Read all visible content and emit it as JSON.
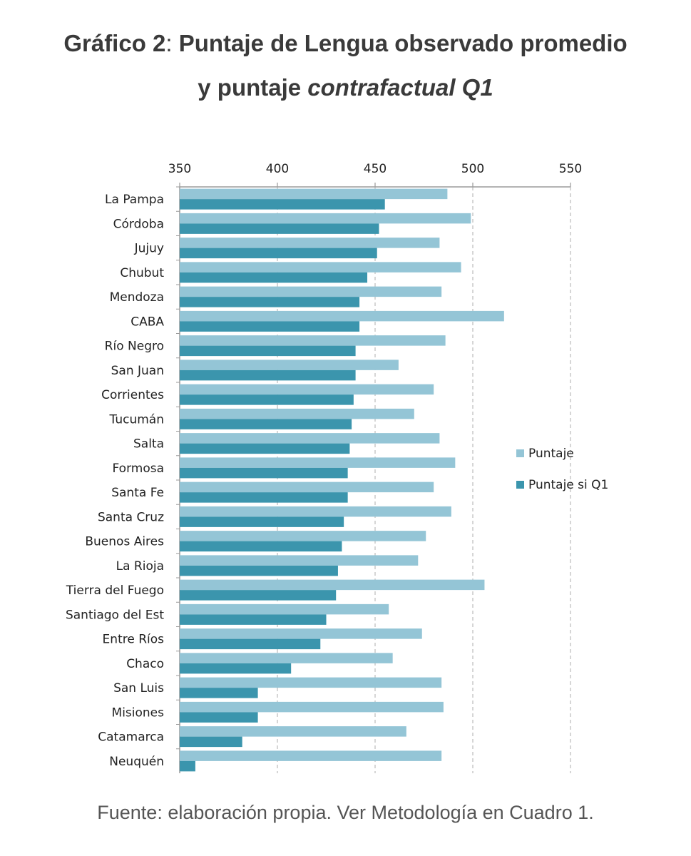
{
  "title": {
    "prefix": "Gráfico 2",
    "sep": ": ",
    "line1_rest": "Puntaje de Lengua observado promedio",
    "line2_plain": "y puntaje ",
    "line2_italic": "contrafactual Q1"
  },
  "source": "Fuente: elaboración propia. Ver Metodología en Cuadro 1.",
  "colors": {
    "puntaje": "#94c5d6",
    "puntaje_q1": "#3b95ad",
    "grid": "#c8c8c8",
    "axis": "#9a9a9a",
    "text": "#222222"
  },
  "chart_data": {
    "type": "bar",
    "orientation": "horizontal",
    "title": "Gráfico 2: Puntaje de Lengua observado promedio y puntaje contrafactual Q1",
    "xlim": [
      350,
      550
    ],
    "xticks": [
      350,
      400,
      450,
      500,
      550
    ],
    "tick_position": "top",
    "grid": "vertical dashed",
    "legend_position": "right",
    "categories": [
      "La Pampa",
      "Córdoba",
      "Jujuy",
      "Chubut",
      "Mendoza",
      "CABA",
      "Río Negro",
      "San Juan",
      "Corrientes",
      "Tucumán",
      "Salta",
      "Formosa",
      "Santa Fe",
      "Santa Cruz",
      "Buenos Aires",
      "La Rioja",
      "Tierra del Fuego",
      "Santiago del Est",
      "Entre Ríos",
      "Chaco",
      "San Luis",
      "Misiones",
      "Catamarca",
      "Neuquén"
    ],
    "series": [
      {
        "name": "Puntaje",
        "values": [
          487,
          499,
          483,
          494,
          484,
          516,
          486,
          462,
          480,
          470,
          483,
          491,
          480,
          489,
          476,
          472,
          506,
          457,
          474,
          459,
          484,
          485,
          466,
          484
        ]
      },
      {
        "name": "Puntaje si Q1",
        "values": [
          455,
          452,
          451,
          446,
          442,
          442,
          440,
          440,
          439,
          438,
          437,
          436,
          436,
          434,
          433,
          431,
          430,
          425,
          422,
          407,
          390,
          390,
          382,
          358
        ]
      }
    ]
  }
}
